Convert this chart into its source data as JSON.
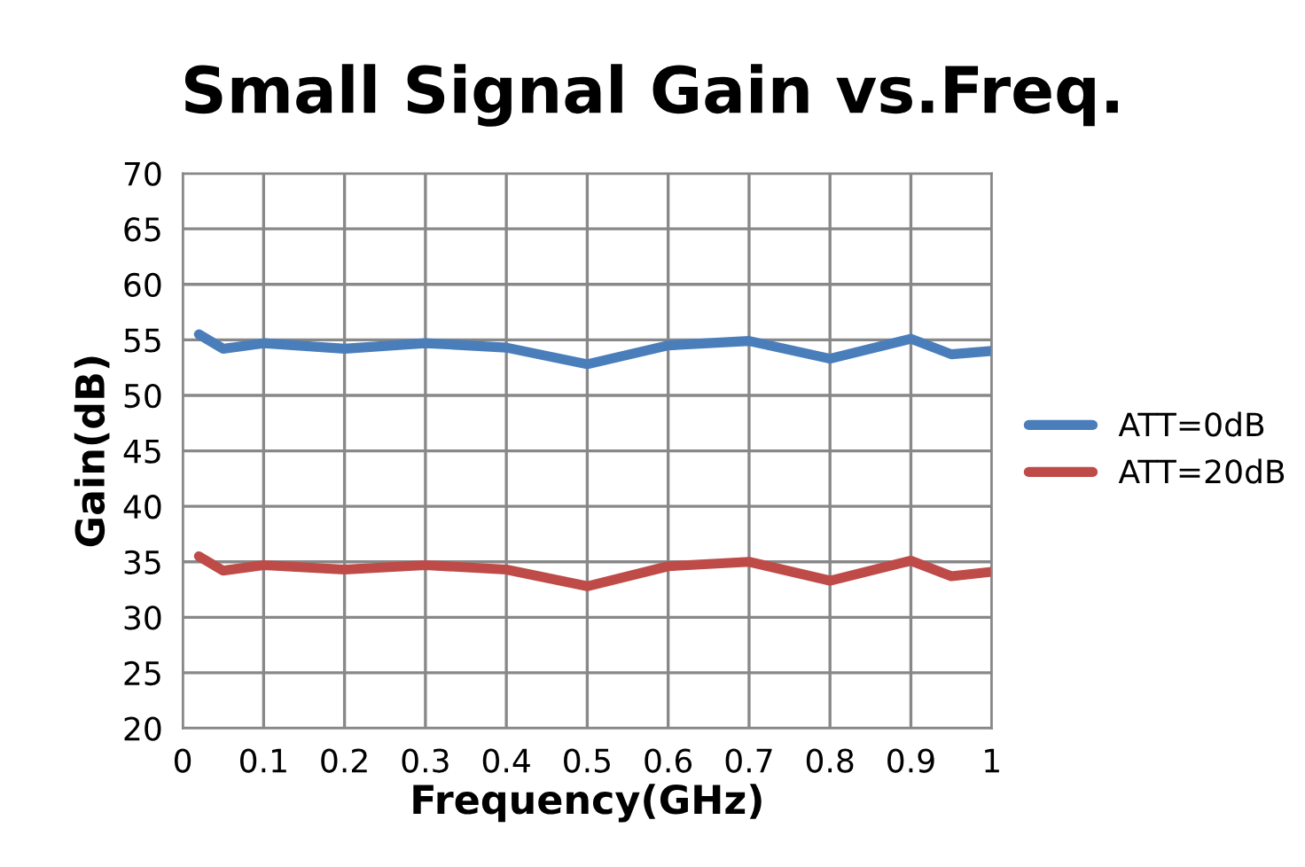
{
  "chart_data": {
    "type": "line",
    "title": "Small Signal Gain vs.Freq.",
    "xlabel": "Frequency(GHz)",
    "ylabel": "Gain(dB)",
    "x": [
      0.02,
      0.05,
      0.1,
      0.2,
      0.3,
      0.4,
      0.5,
      0.6,
      0.7,
      0.8,
      0.9,
      0.95,
      1.0
    ],
    "series": [
      {
        "name": "ATT=0dB",
        "color": "#4a7ebb",
        "values": [
          55.5,
          54.2,
          54.7,
          54.2,
          54.7,
          54.3,
          52.8,
          54.5,
          54.9,
          53.3,
          55.1,
          53.7,
          54.0
        ]
      },
      {
        "name": "ATT=20dB",
        "color": "#be4b48",
        "values": [
          35.5,
          34.2,
          34.7,
          34.3,
          34.7,
          34.3,
          32.8,
          34.6,
          35.0,
          33.3,
          35.1,
          33.7,
          34.1
        ]
      }
    ],
    "xlim": [
      0,
      1
    ],
    "xticks": [
      0,
      0.1,
      0.2,
      0.3,
      0.4,
      0.5,
      0.6,
      0.7,
      0.8,
      0.9,
      1
    ],
    "ylim": [
      20,
      70
    ],
    "yticks": [
      20,
      25,
      30,
      35,
      40,
      45,
      50,
      55,
      60,
      65,
      70
    ],
    "grid": true,
    "legend": "right",
    "marker": "none",
    "line_style": "solid"
  }
}
